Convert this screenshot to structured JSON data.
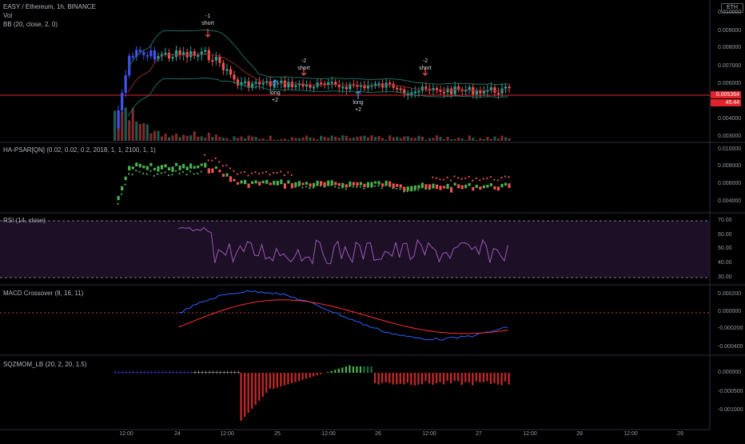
{
  "header": {
    "symbol_line": "EASY / Ethereum, 1h, BINANCE",
    "vol_label": "Vol",
    "bb_label": "BB (20, close, 2, 0)",
    "currency_badge": "ETH"
  },
  "price_pane": {
    "ticks": [
      "0.010000",
      "0.009000",
      "0.008000",
      "0.007000",
      "0.006000",
      "0.004000",
      "0.003000"
    ],
    "price_flag": "0.005364",
    "countdown_flag": "45:44"
  },
  "annotations": [
    {
      "line1": "-1",
      "line2": "short",
      "dir": "down"
    },
    {
      "line1": "long",
      "line2": "+2",
      "dir": "up"
    },
    {
      "line1": "-2",
      "line2": "short",
      "dir": "down"
    },
    {
      "line1": "long",
      "line2": "+2",
      "dir": "up"
    },
    {
      "line1": "-2",
      "line2": "short",
      "dir": "down"
    }
  ],
  "psar_pane": {
    "label": "HA-PSAR[QN] (0.02, 0.02, 0.2, 2018, 1, 1, 2100, 1, 1)",
    "ticks": [
      "0.010000",
      "0.008000",
      "0.006000",
      "0.004000"
    ]
  },
  "rsi_pane": {
    "label": "RSI (14, close)",
    "ticks": [
      "70.00",
      "60.00",
      "50.00",
      "40.00",
      "30.00"
    ]
  },
  "macd_pane": {
    "label": "MACD Crossover (8, 16, 11)",
    "ticks": [
      "0.000200",
      "0.000000",
      "-0.000200",
      "-0.000400"
    ]
  },
  "sqz_pane": {
    "label": "SQZMOM_LB (20, 2, 20, 1.5)",
    "ticks": [
      "0.000000",
      "-0.000500",
      "-0.001000"
    ]
  },
  "time_axis": [
    "12:00",
    "24",
    "12:00",
    "25",
    "12:00",
    "26",
    "12:00",
    "27",
    "12:00",
    "28",
    "12:00",
    "29"
  ],
  "colors": {
    "up": "#26a69a",
    "down": "#ef5350",
    "candle_up_alt": "#4052f0",
    "bb": "#1f6b5c",
    "psar_up": "#4caf50",
    "psar_down": "#ef5350",
    "rsi": "#9b59b6",
    "rsi_bg": "#1c0f26",
    "macd": "#2962ff",
    "signal": "#ff3030",
    "price_line": "#e2232a"
  }
}
